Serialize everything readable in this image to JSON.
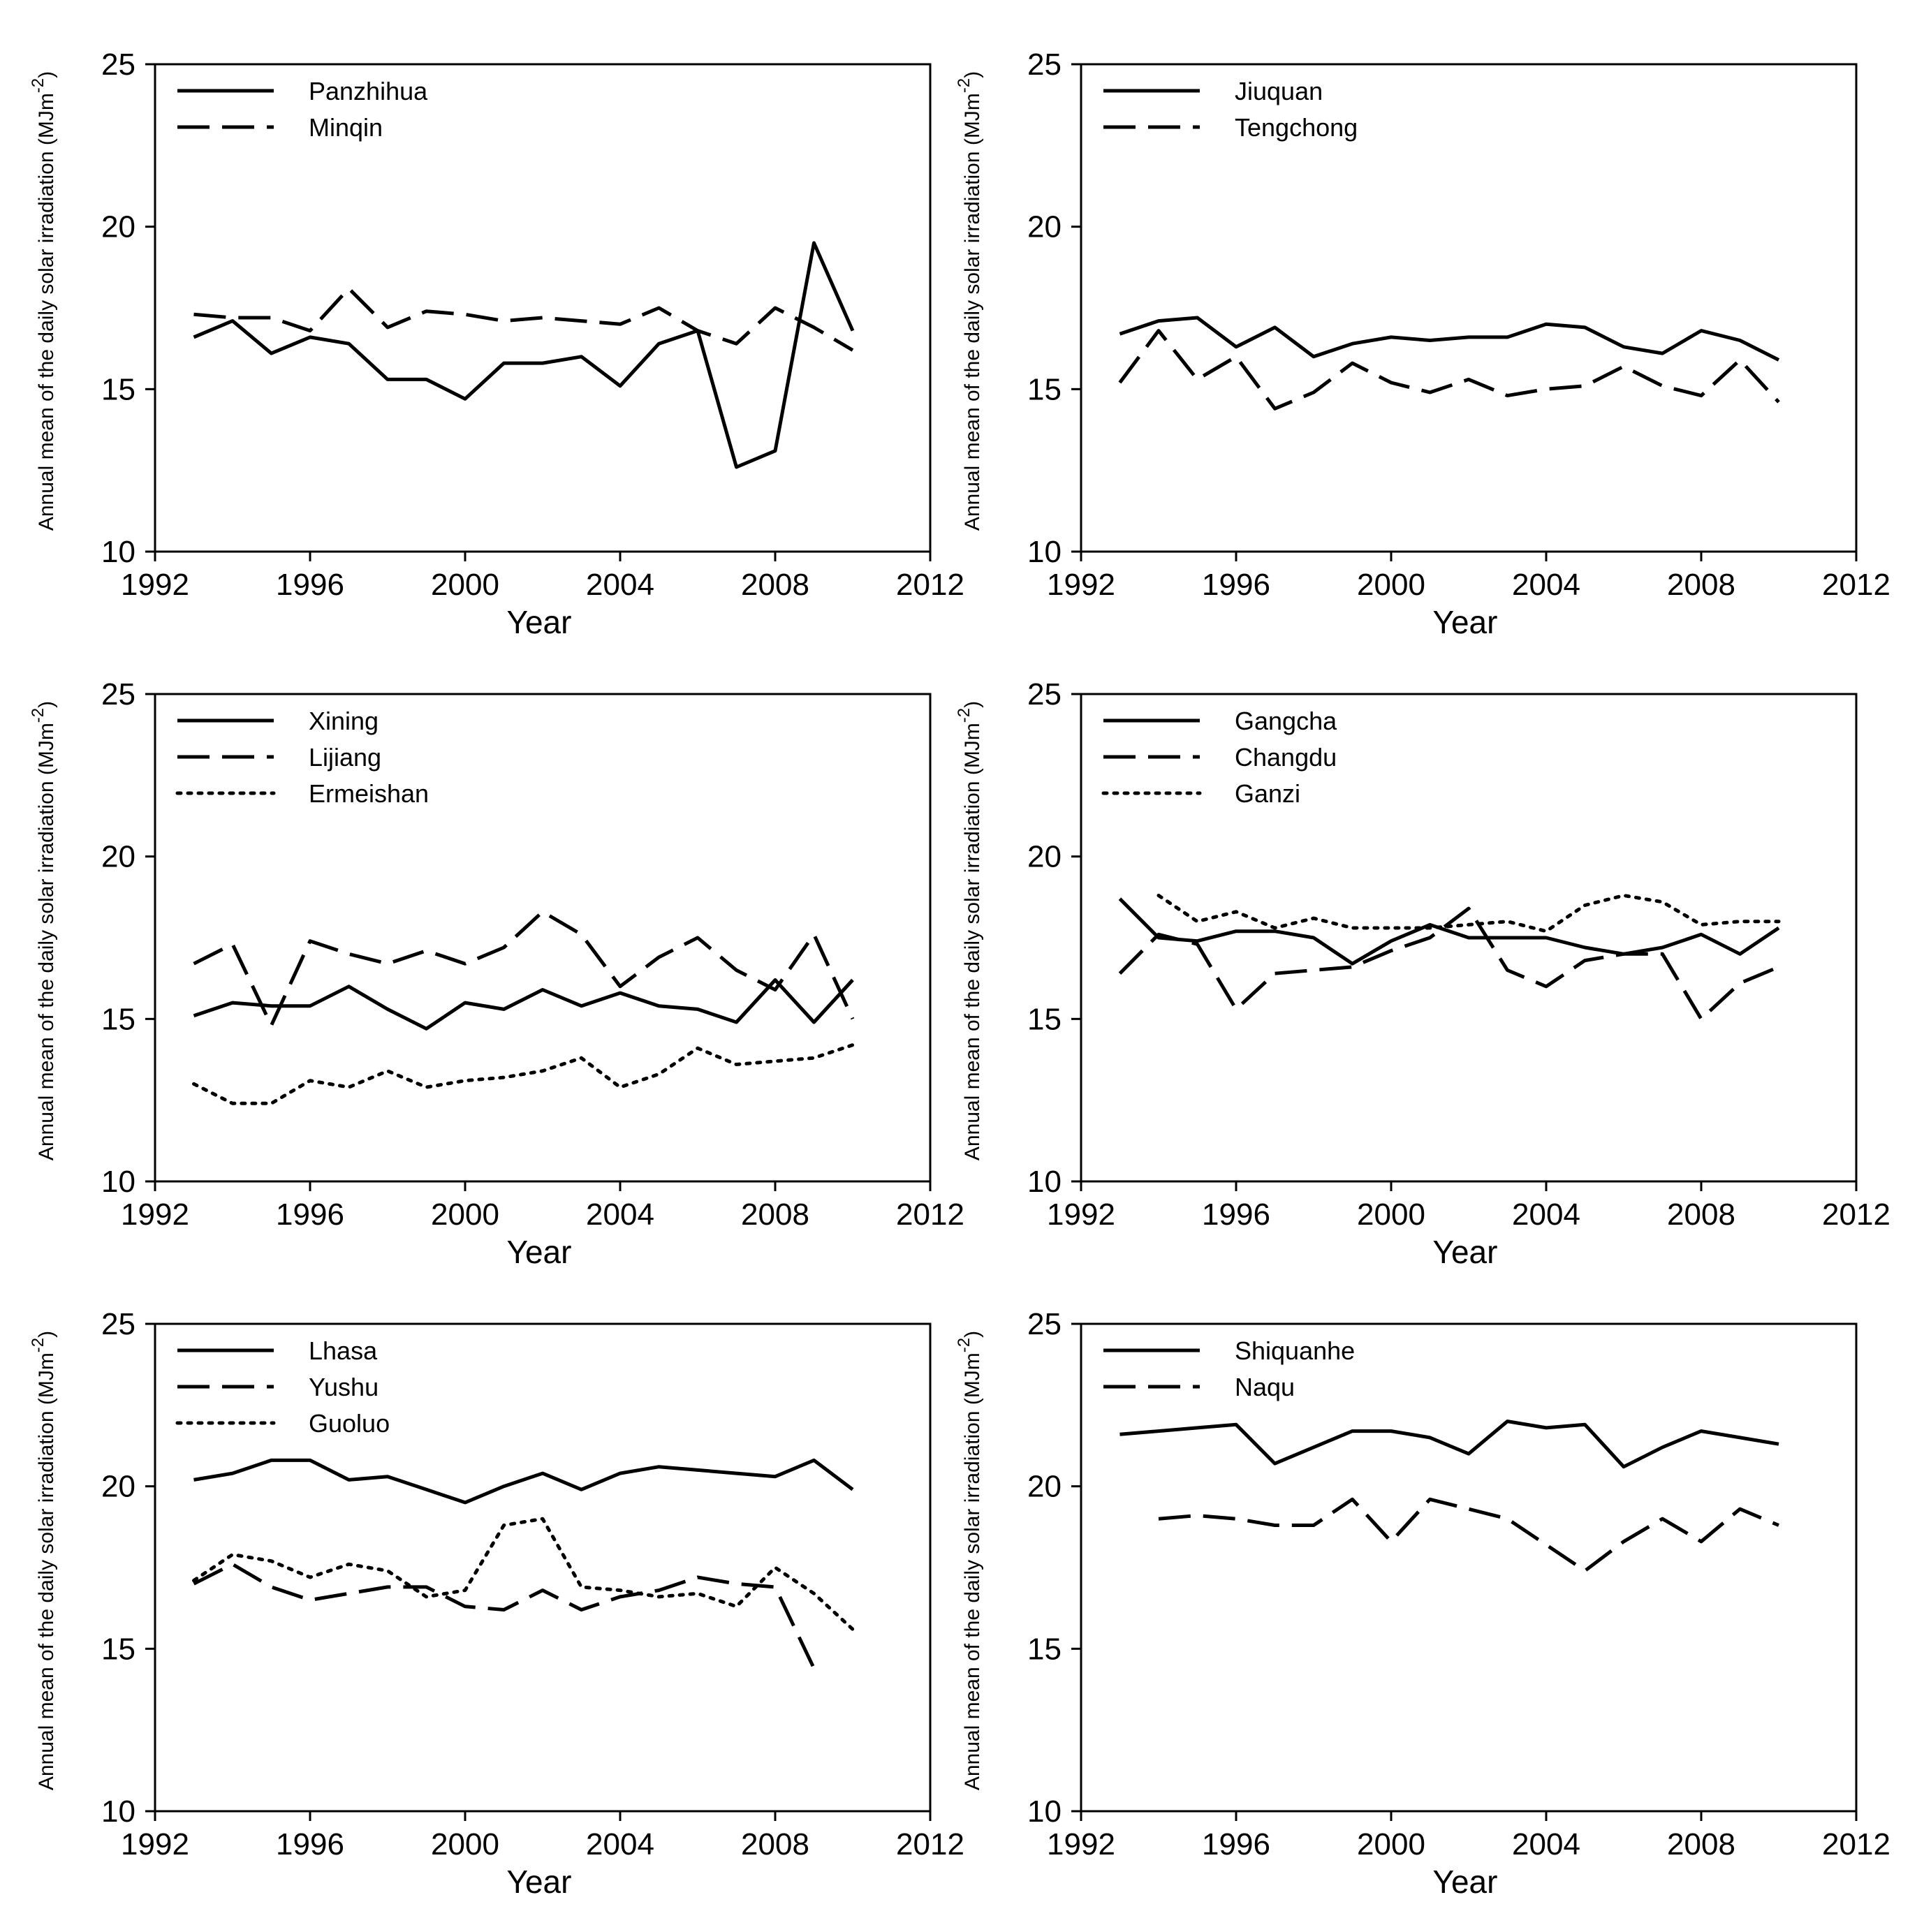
{
  "chart_data": [
    {
      "type": "line",
      "xlabel": "Year",
      "ylabel": "Annual mean of the daily solar irradiation (MJm-2)",
      "ylabel_text": "Annual mean of the daily solar irradiation (MJm",
      "ylabel_superscript": "-2",
      "ylabel_close": ")",
      "xlim": [
        1992,
        2012
      ],
      "ylim": [
        10,
        25
      ],
      "xticks": [
        "1992",
        "1996",
        "2000",
        "2004",
        "2008",
        "2012"
      ],
      "yticks": [
        "10",
        "15",
        "20",
        "25"
      ],
      "legend_position": "top-left",
      "series": [
        {
          "name": "Panzhihua",
          "style": "solid",
          "x": [
            1993,
            1994,
            1995,
            1996,
            1997,
            1998,
            1999,
            2000,
            2001,
            2002,
            2003,
            2004,
            2005,
            2006,
            2007,
            2008,
            2009,
            2010
          ],
          "values": [
            16.6,
            17.1,
            16.1,
            16.6,
            16.4,
            15.3,
            15.3,
            14.7,
            15.8,
            15.8,
            16.0,
            15.1,
            16.4,
            16.8,
            12.6,
            13.1,
            19.5,
            16.8
          ]
        },
        {
          "name": "Minqin",
          "style": "dashed",
          "x": [
            1993,
            1994,
            1995,
            1996,
            1997,
            1998,
            1999,
            2000,
            2001,
            2002,
            2003,
            2004,
            2005,
            2006,
            2007,
            2008,
            2009,
            2010
          ],
          "values": [
            17.3,
            17.2,
            17.2,
            16.8,
            18.1,
            16.9,
            17.4,
            17.3,
            17.1,
            17.2,
            17.1,
            17.0,
            17.5,
            16.8,
            16.4,
            17.5,
            16.9,
            16.2
          ]
        }
      ]
    },
    {
      "type": "line",
      "xlabel": "Year",
      "ylabel": "Annual mean of the daily solar irradiation (MJm-2)",
      "ylabel_text": "Annual mean of the daily solar irradiation (MJm",
      "ylabel_superscript": "-2",
      "ylabel_close": ")",
      "xlim": [
        1992,
        2012
      ],
      "ylim": [
        10,
        25
      ],
      "xticks": [
        "1992",
        "1996",
        "2000",
        "2004",
        "2008",
        "2012"
      ],
      "yticks": [
        "10",
        "15",
        "20",
        "25"
      ],
      "legend_position": "top-left",
      "series": [
        {
          "name": "Jiuquan",
          "style": "solid",
          "x": [
            1993,
            1994,
            1995,
            1996,
            1997,
            1998,
            1999,
            2000,
            2001,
            2002,
            2003,
            2004,
            2005,
            2006,
            2007,
            2008,
            2009,
            2010
          ],
          "values": [
            16.7,
            17.1,
            17.2,
            16.3,
            16.9,
            16.0,
            16.4,
            16.6,
            16.5,
            16.6,
            16.6,
            17.0,
            16.9,
            16.3,
            16.1,
            16.8,
            16.5,
            15.9
          ]
        },
        {
          "name": "Tengchong",
          "style": "dashed",
          "x": [
            1993,
            1994,
            1995,
            1996,
            1997,
            1998,
            1999,
            2000,
            2001,
            2002,
            2003,
            2004,
            2005,
            2006,
            2007,
            2008,
            2009,
            2010
          ],
          "values": [
            15.2,
            16.8,
            15.3,
            16.0,
            14.4,
            14.9,
            15.8,
            15.2,
            14.9,
            15.3,
            14.8,
            15.0,
            15.1,
            15.7,
            15.1,
            14.8,
            15.9,
            14.6
          ]
        }
      ]
    },
    {
      "type": "line",
      "xlabel": "Year",
      "ylabel": "Annual mean of the daily solar irradiation (MJm-2)",
      "ylabel_text": "Annual mean of the daily solar irradiation (MJm",
      "ylabel_superscript": "-2",
      "ylabel_close": ")",
      "xlim": [
        1992,
        2012
      ],
      "ylim": [
        10,
        25
      ],
      "xticks": [
        "1992",
        "1996",
        "2000",
        "2004",
        "2008",
        "2012"
      ],
      "yticks": [
        "10",
        "15",
        "20",
        "25"
      ],
      "legend_position": "top-left",
      "series": [
        {
          "name": "Xining",
          "style": "solid",
          "x": [
            1993,
            1994,
            1995,
            1996,
            1997,
            1998,
            1999,
            2000,
            2001,
            2002,
            2003,
            2004,
            2005,
            2006,
            2007,
            2008,
            2009,
            2010
          ],
          "values": [
            15.1,
            15.5,
            15.4,
            15.4,
            16.0,
            15.3,
            14.7,
            15.5,
            15.3,
            15.9,
            15.4,
            15.8,
            15.4,
            15.3,
            14.9,
            16.2,
            14.9,
            16.2
          ]
        },
        {
          "name": "Lijiang",
          "style": "dashed",
          "x": [
            1993,
            1994,
            1995,
            1996,
            1997,
            1998,
            1999,
            2000,
            2001,
            2002,
            2003,
            2004,
            2005,
            2006,
            2007,
            2008,
            2009,
            2010
          ],
          "values": [
            16.7,
            17.3,
            14.8,
            17.4,
            17.0,
            16.7,
            17.1,
            16.7,
            17.2,
            18.3,
            17.6,
            16.0,
            16.9,
            17.5,
            16.5,
            15.9,
            17.6,
            15.0
          ]
        },
        {
          "name": "Ermeishan",
          "style": "dotted",
          "x": [
            1993,
            1994,
            1995,
            1996,
            1997,
            1998,
            1999,
            2000,
            2001,
            2002,
            2003,
            2004,
            2005,
            2006,
            2007,
            2008,
            2009,
            2010
          ],
          "values": [
            13.0,
            12.4,
            12.4,
            13.1,
            12.9,
            13.4,
            12.9,
            13.1,
            13.2,
            13.4,
            13.8,
            12.9,
            13.3,
            14.1,
            13.6,
            13.7,
            13.8,
            14.2
          ]
        }
      ]
    },
    {
      "type": "line",
      "xlabel": "Year",
      "ylabel": "Annual mean of the daily solar irradiation (MJm-2)",
      "ylabel_text": "Annual mean of the daily solar irradiation (MJm",
      "ylabel_superscript": "-2",
      "ylabel_close": ")",
      "xlim": [
        1992,
        2012
      ],
      "ylim": [
        10,
        25
      ],
      "xticks": [
        "1992",
        "1996",
        "2000",
        "2004",
        "2008",
        "2012"
      ],
      "yticks": [
        "10",
        "15",
        "20",
        "25"
      ],
      "legend_position": "top-left",
      "series": [
        {
          "name": "Gangcha",
          "style": "solid",
          "x": [
            1993,
            1994,
            1995,
            1996,
            1997,
            1998,
            1999,
            2000,
            2001,
            2002,
            2003,
            2004,
            2005,
            2006,
            2007,
            2008,
            2009,
            2010
          ],
          "values": [
            18.7,
            17.5,
            17.4,
            17.7,
            17.7,
            17.5,
            16.7,
            17.4,
            17.9,
            17.5,
            17.5,
            17.5,
            17.2,
            17.0,
            17.2,
            17.6,
            17.0,
            17.8
          ]
        },
        {
          "name": "Changdu",
          "style": "dashed",
          "x": [
            1993,
            1994,
            1995,
            1996,
            1997,
            1998,
            1999,
            2000,
            2001,
            2002,
            2003,
            2004,
            2005,
            2006,
            2007,
            2008,
            2009,
            2010
          ],
          "values": [
            16.4,
            17.6,
            17.3,
            15.3,
            16.4,
            16.5,
            16.6,
            17.1,
            17.5,
            18.4,
            16.5,
            16.0,
            16.8,
            17.0,
            17.0,
            15.0,
            16.1,
            16.6
          ]
        },
        {
          "name": "Ganzi",
          "style": "dotted",
          "x": [
            1994,
            1995,
            1996,
            1997,
            1998,
            1999,
            2000,
            2001,
            2002,
            2003,
            2004,
            2005,
            2006,
            2007,
            2008,
            2009,
            2010
          ],
          "values": [
            18.8,
            18.0,
            18.3,
            17.8,
            18.1,
            17.8,
            17.8,
            17.8,
            17.9,
            18.0,
            17.7,
            18.5,
            18.8,
            18.6,
            17.9,
            18.0,
            18.0
          ]
        }
      ]
    },
    {
      "type": "line",
      "xlabel": "Year",
      "ylabel": "Annual mean of the daily solar irradiation (MJm-2)",
      "ylabel_text": "Annual mean of the daily solar irradiation (MJm",
      "ylabel_superscript": "-2",
      "ylabel_close": ")",
      "xlim": [
        1992,
        2012
      ],
      "ylim": [
        10,
        25
      ],
      "xticks": [
        "1992",
        "1996",
        "2000",
        "2004",
        "2008",
        "2012"
      ],
      "yticks": [
        "10",
        "15",
        "20",
        "25"
      ],
      "legend_position": "top-left",
      "series": [
        {
          "name": "Lhasa",
          "style": "solid",
          "x": [
            1993,
            1994,
            1995,
            1996,
            1997,
            1998,
            1999,
            2000,
            2001,
            2002,
            2003,
            2004,
            2005,
            2006,
            2007,
            2008,
            2009,
            2010
          ],
          "values": [
            20.2,
            20.4,
            20.8,
            20.8,
            20.2,
            20.3,
            19.9,
            19.5,
            20.0,
            20.4,
            19.9,
            20.4,
            20.6,
            20.5,
            20.4,
            20.3,
            20.8,
            19.9
          ]
        },
        {
          "name": "Yushu",
          "style": "dashed",
          "x": [
            1993,
            1994,
            1995,
            1996,
            1997,
            1998,
            1999,
            2000,
            2001,
            2002,
            2003,
            2004,
            2005,
            2006,
            2007,
            2008,
            2009
          ],
          "values": [
            17.0,
            17.6,
            16.9,
            16.5,
            16.7,
            16.9,
            16.9,
            16.3,
            16.2,
            16.8,
            16.2,
            16.6,
            16.8,
            17.2,
            17.0,
            16.9,
            14.4
          ]
        },
        {
          "name": "Guoluo",
          "style": "dotted",
          "x": [
            1993,
            1994,
            1995,
            1996,
            1997,
            1998,
            1999,
            2000,
            2001,
            2002,
            2003,
            2004,
            2005,
            2006,
            2007,
            2008,
            2009,
            2010
          ],
          "values": [
            17.1,
            17.9,
            17.7,
            17.2,
            17.6,
            17.4,
            16.6,
            16.8,
            18.8,
            19.0,
            16.9,
            16.8,
            16.6,
            16.7,
            16.3,
            17.5,
            16.7,
            15.6
          ]
        }
      ]
    },
    {
      "type": "line",
      "xlabel": "Year",
      "ylabel": "Annual mean of the daily solar irradiation (MJm-2)",
      "ylabel_text": "Annual mean of the daily solar irradiation (MJm",
      "ylabel_superscript": "-2",
      "ylabel_close": ")",
      "xlim": [
        1992,
        2012
      ],
      "ylim": [
        10,
        25
      ],
      "xticks": [
        "1992",
        "1996",
        "2000",
        "2004",
        "2008",
        "2012"
      ],
      "yticks": [
        "10",
        "15",
        "20",
        "25"
      ],
      "legend_position": "top-left",
      "series": [
        {
          "name": "Shiquanhe",
          "style": "solid",
          "x": [
            1993,
            1994,
            1995,
            1996,
            1997,
            1998,
            1999,
            2000,
            2001,
            2002,
            2003,
            2004,
            2005,
            2006,
            2007,
            2008,
            2009,
            2010
          ],
          "values": [
            21.6,
            21.7,
            21.8,
            21.9,
            20.7,
            21.2,
            21.7,
            21.7,
            21.5,
            21.0,
            22.0,
            21.8,
            21.9,
            20.6,
            21.2,
            21.7,
            21.5,
            21.3
          ]
        },
        {
          "name": "Naqu",
          "style": "dashed",
          "x": [
            1994,
            1995,
            1996,
            1997,
            1998,
            1999,
            2000,
            2001,
            2002,
            2003,
            2004,
            2005,
            2006,
            2007,
            2008,
            2009,
            2010
          ],
          "values": [
            19.0,
            19.1,
            19.0,
            18.8,
            18.8,
            19.6,
            18.3,
            19.6,
            19.3,
            19.0,
            18.2,
            17.4,
            18.3,
            19.0,
            18.3,
            19.3,
            18.8
          ]
        }
      ]
    }
  ]
}
